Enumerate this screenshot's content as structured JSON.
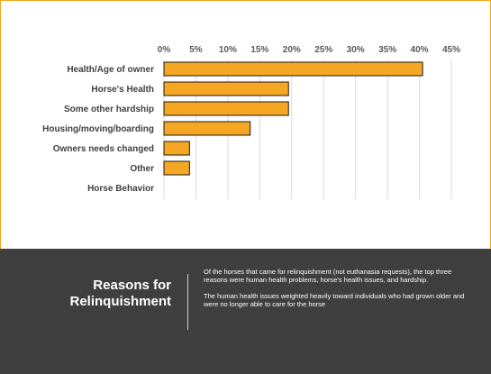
{
  "colors": {
    "bar": "#F5A623",
    "bar_stroke": "#1a1a1a",
    "grid": "#d9d9d9",
    "panel": "#3f3f3f",
    "border": "#F5A623"
  },
  "chart_data": {
    "type": "bar",
    "orientation": "horizontal",
    "categories": [
      "Health/Age of owner",
      "Horse's Health",
      "Some other hardship",
      "Housing/moving/boarding",
      "Owners needs changed",
      "Other",
      "Horse Behavior"
    ],
    "values": [
      40.5,
      19.5,
      19.5,
      13.5,
      4,
      4,
      0
    ],
    "xticks": [
      "0%",
      "5%",
      "10%",
      "15%",
      "20%",
      "25%",
      "30%",
      "35%",
      "40%",
      "45%"
    ],
    "xlim": [
      0,
      45
    ],
    "xaxis_position": "top",
    "grid": true,
    "legend": "none"
  },
  "panel": {
    "title_line1": "Reasons for",
    "title_line2": "Relinquishment",
    "paragraph1": "Of the horses that came for relinquishment (not euthanasia requests), the top three reasons were human health problems, horse's health issues, and hardship.",
    "paragraph2": "The human health issues weighted heavily toward individuals who had grown older and were no longer able to care for the horse"
  }
}
